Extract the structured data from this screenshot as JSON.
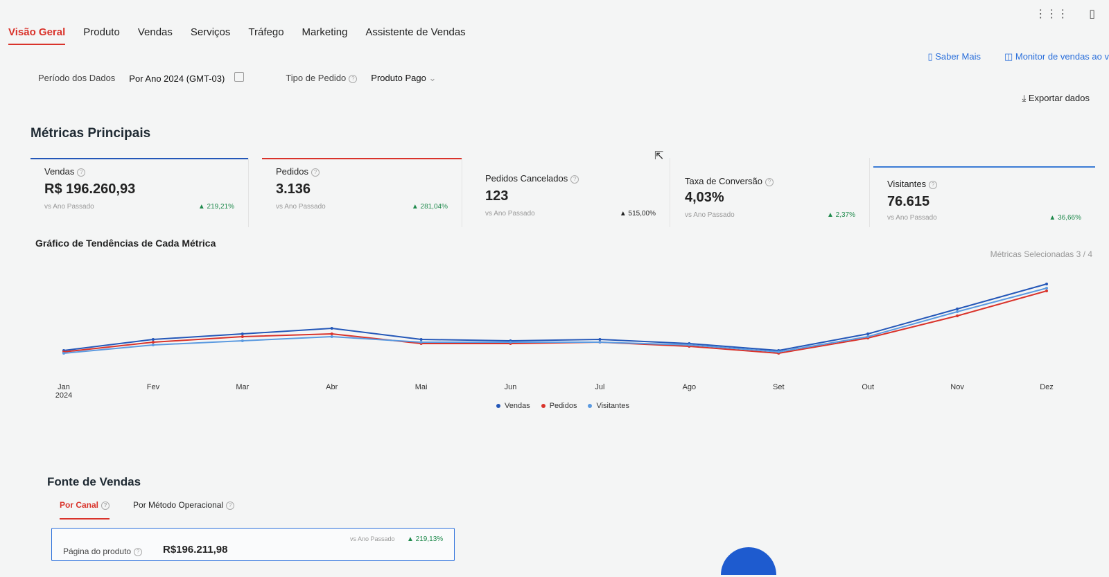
{
  "tabs": [
    "Visão Geral",
    "Produto",
    "Vendas",
    "Serviços",
    "Tráfego",
    "Marketing",
    "Assistente de Vendas"
  ],
  "top_icons": {
    "apps": "grid-icon",
    "book": "book-icon"
  },
  "links": {
    "saber_mais": "Saber Mais",
    "monitor": "Monitor de vendas ao v"
  },
  "filters": {
    "periodo_label": "Período dos Dados",
    "periodo_value": "Por Ano  2024 (GMT-03)",
    "tipo_label": "Tipo de Pedido",
    "tipo_value": "Produto Pago"
  },
  "export_label": "Exportar dados",
  "section_title": "Métricas Principais",
  "metrics": [
    {
      "name": "Vendas",
      "value": "R$ 196.260,93",
      "compare": "vs Ano Passado",
      "change": "▲ 219,21%",
      "color": "#2457b8"
    },
    {
      "name": "Pedidos",
      "value": "3.136",
      "compare": "vs Ano Passado",
      "change": "▲ 281,04%",
      "color": "#d9332b"
    },
    {
      "name": "Pedidos Cancelados",
      "value": "123",
      "compare": "vs Ano Passado",
      "change": "▲ 515,00%",
      "color": ""
    },
    {
      "name": "Taxa de Conversão",
      "value": "4,03%",
      "compare": "vs Ano Passado",
      "change": "▲ 2,37%",
      "color": ""
    },
    {
      "name": "Visitantes",
      "value": "76.615",
      "compare": "vs Ano Passado",
      "change": "▲ 36,66%",
      "color": "#3a7bd5"
    }
  ],
  "chart_title": "Gráfico de Tendências de Cada Métrica",
  "selected_metrics": "Métricas Selecionadas 3 / 4",
  "chart_data": {
    "type": "line",
    "categories": [
      "Jan\n2024",
      "Fev",
      "Mar",
      "Abr",
      "Mai",
      "Jun",
      "Jul",
      "Ago",
      "Set",
      "Out",
      "Nov",
      "Dez"
    ],
    "series": [
      {
        "name": "Vendas",
        "color": "#2457b8",
        "values": [
          22,
          30,
          34,
          38,
          30,
          29,
          30,
          27,
          22,
          34,
          52,
          70
        ]
      },
      {
        "name": "Pedidos",
        "color": "#d9332b",
        "values": [
          21,
          28,
          32,
          34,
          27,
          27,
          28,
          25,
          20,
          31,
          47,
          65
        ]
      },
      {
        "name": "Visitantes",
        "color": "#5b9ae0",
        "values": [
          20,
          26,
          29,
          32,
          28,
          28,
          28,
          26,
          21,
          32,
          50,
          67
        ]
      }
    ],
    "ylim": [
      0,
      80
    ]
  },
  "fonte_title": "Fonte de Vendas",
  "subtabs": [
    "Por Canal",
    "Por Método Operacional"
  ],
  "source": {
    "name": "Página do produto",
    "value": "R$196.211,98",
    "compare": "vs Ano Passado",
    "change": "▲ 219,13%"
  }
}
